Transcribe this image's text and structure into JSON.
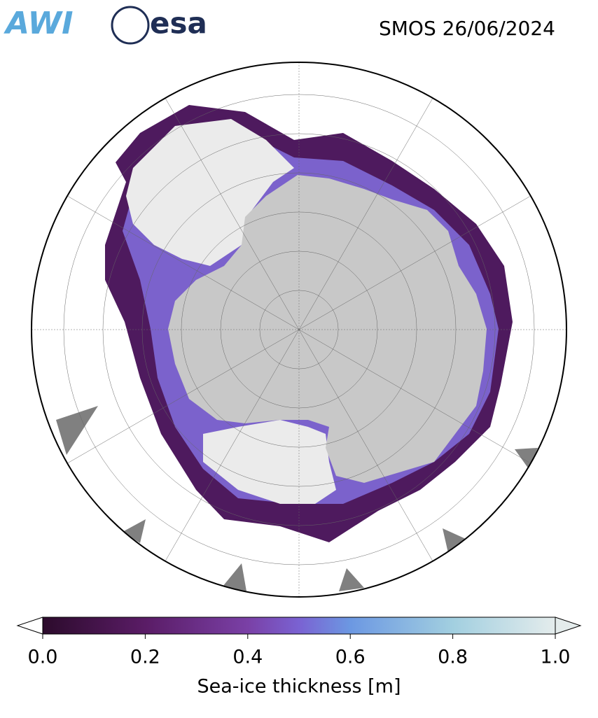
{
  "header": {
    "logos": [
      "AWI",
      "esa"
    ],
    "title": "SMOS 26/06/2024"
  },
  "colorbar": {
    "label": "Sea-ice thickness [m]",
    "lim": [
      0,
      1
    ],
    "ticks": [
      {
        "value": 0,
        "label": "0.0"
      },
      0.2,
      0.4,
      0.6,
      0.8,
      {
        "value": 1,
        "label": "1.0"
      }
    ]
  }
}
